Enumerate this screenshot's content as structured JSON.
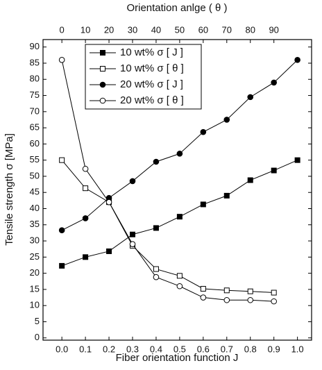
{
  "chart_data": {
    "type": "line",
    "x_label": "Fiber orientation function J",
    "x2_label": "Orientation anlge ( θ )",
    "y_label": "Tensile strength σ [MPa]",
    "xlim": [
      -0.08,
      1.06
    ],
    "xticks": [
      {
        "value": 0,
        "label": "0.0"
      },
      {
        "value": 0.1,
        "label": "0.1"
      },
      {
        "value": 0.2,
        "label": "0.2"
      },
      {
        "value": 0.3,
        "label": "0.3"
      },
      {
        "value": 0.4,
        "label": "0.4"
      },
      {
        "value": 0.5,
        "label": "0.5"
      },
      {
        "value": 0.6,
        "label": "0.6"
      },
      {
        "value": 0.7,
        "label": "0.7"
      },
      {
        "value": 0.8,
        "label": "0.8"
      },
      {
        "value": 0.9,
        "label": "0.9"
      },
      {
        "value": 1,
        "label": "1.0"
      }
    ],
    "x2lim": [
      -8,
      106
    ],
    "x2ticks": [
      0,
      10,
      20,
      30,
      40,
      50,
      60,
      70,
      80,
      90
    ],
    "ylim": [
      -0.7,
      92.3
    ],
    "yticks": [
      0,
      5,
      10,
      15,
      20,
      25,
      30,
      35,
      40,
      45,
      50,
      55,
      60,
      65,
      70,
      75,
      80,
      85,
      90
    ],
    "legend": "top-left",
    "series": [
      {
        "name": "10 wt% σ [ J ]",
        "color": "#000000",
        "marker": "square",
        "filled": true,
        "x": [
          0,
          0.1,
          0.2,
          0.3,
          0.4,
          0.5,
          0.6,
          0.7,
          0.8,
          0.9,
          1
        ],
        "values": [
          22.3,
          25,
          26.8,
          32,
          34,
          37.5,
          41.3,
          44,
          48.8,
          51.8,
          55
        ]
      },
      {
        "name": "10 wt% σ [ θ ]",
        "color": "#000000",
        "marker": "square",
        "filled": false,
        "axis": "x2",
        "x": [
          0,
          10,
          20,
          30,
          40,
          50,
          60,
          70,
          80,
          90
        ],
        "values": [
          55,
          46.3,
          42,
          28.5,
          21.3,
          19.2,
          15.2,
          14.7,
          14.4,
          14
        ]
      },
      {
        "name": "20 wt% σ [ J ]",
        "color": "#000000",
        "marker": "circle",
        "filled": true,
        "x": [
          0,
          0.1,
          0.2,
          0.3,
          0.4,
          0.5,
          0.6,
          0.7,
          0.8,
          0.9,
          1
        ],
        "values": [
          33.3,
          37,
          43.3,
          48.5,
          54.5,
          57,
          63.7,
          67.5,
          74.5,
          79,
          86
        ]
      },
      {
        "name": "20 wt% σ [ θ ]",
        "color": "#000000",
        "marker": "circle",
        "filled": false,
        "axis": "x2",
        "x": [
          0,
          10,
          20,
          30,
          40,
          50,
          60,
          70,
          80,
          90
        ],
        "values": [
          86,
          52.3,
          42,
          29,
          18.8,
          16,
          12.5,
          11.7,
          11.7,
          11.3
        ]
      }
    ]
  }
}
